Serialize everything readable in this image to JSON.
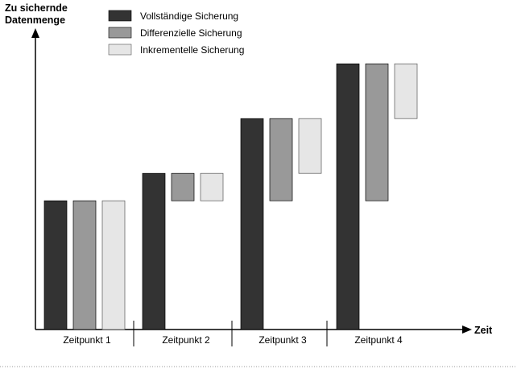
{
  "chart_data": {
    "type": "bar",
    "title": "",
    "ylabel": [
      "Zu sichernde",
      "Datenmenge"
    ],
    "xlabel": "Zeit",
    "categories": [
      "Zeitpunkt 1",
      "Zeitpunkt 2",
      "Zeitpunkt 3",
      "Zeitpunkt 4"
    ],
    "ylim": [
      0,
      100
    ],
    "grid": false,
    "legend_position": "top-center",
    "series": [
      {
        "name": "Vollständige Sicherung",
        "color": "#333333",
        "ranges": [
          [
            0,
            47
          ],
          [
            0,
            57
          ],
          [
            0,
            77
          ],
          [
            0,
            97
          ]
        ]
      },
      {
        "name": "Differenzielle Sicherung",
        "color": "#999999",
        "ranges": [
          [
            0,
            47
          ],
          [
            47,
            57
          ],
          [
            47,
            77
          ],
          [
            47,
            97
          ]
        ]
      },
      {
        "name": "Inkrementelle Sicherung",
        "color": "#e6e6e6",
        "ranges": [
          [
            0,
            47
          ],
          [
            47,
            57
          ],
          [
            57,
            77
          ],
          [
            77,
            97
          ]
        ]
      }
    ]
  }
}
